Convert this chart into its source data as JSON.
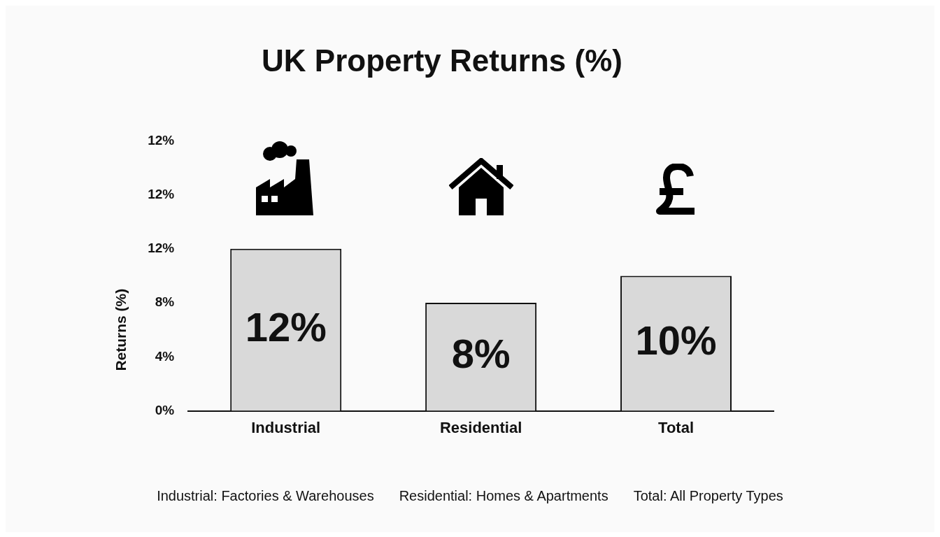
{
  "chart_data": {
    "type": "bar",
    "title": "UK Property Returns (%)",
    "ylabel": "Returns (%)",
    "categories": [
      "Industrial",
      "Residential",
      "Total"
    ],
    "values": [
      12,
      8,
      10
    ],
    "value_labels": [
      "12%",
      "8%",
      "10%"
    ],
    "color": "#d9d9d9",
    "ylim": [
      0,
      12
    ],
    "yticks": [
      {
        "value": 0,
        "label": "0%"
      },
      {
        "value": 4,
        "label": "4%"
      },
      {
        "value": 8,
        "label": "8%"
      },
      {
        "value": 12,
        "label": "12%"
      }
    ],
    "grid": false,
    "legend": false,
    "annotations": [
      {
        "text": "12%"
      },
      {
        "text": "12%"
      },
      "Industrial: Factories & Warehouses",
      "Residential: Homes & Apartments",
      "Total: All Property Types"
    ]
  }
}
